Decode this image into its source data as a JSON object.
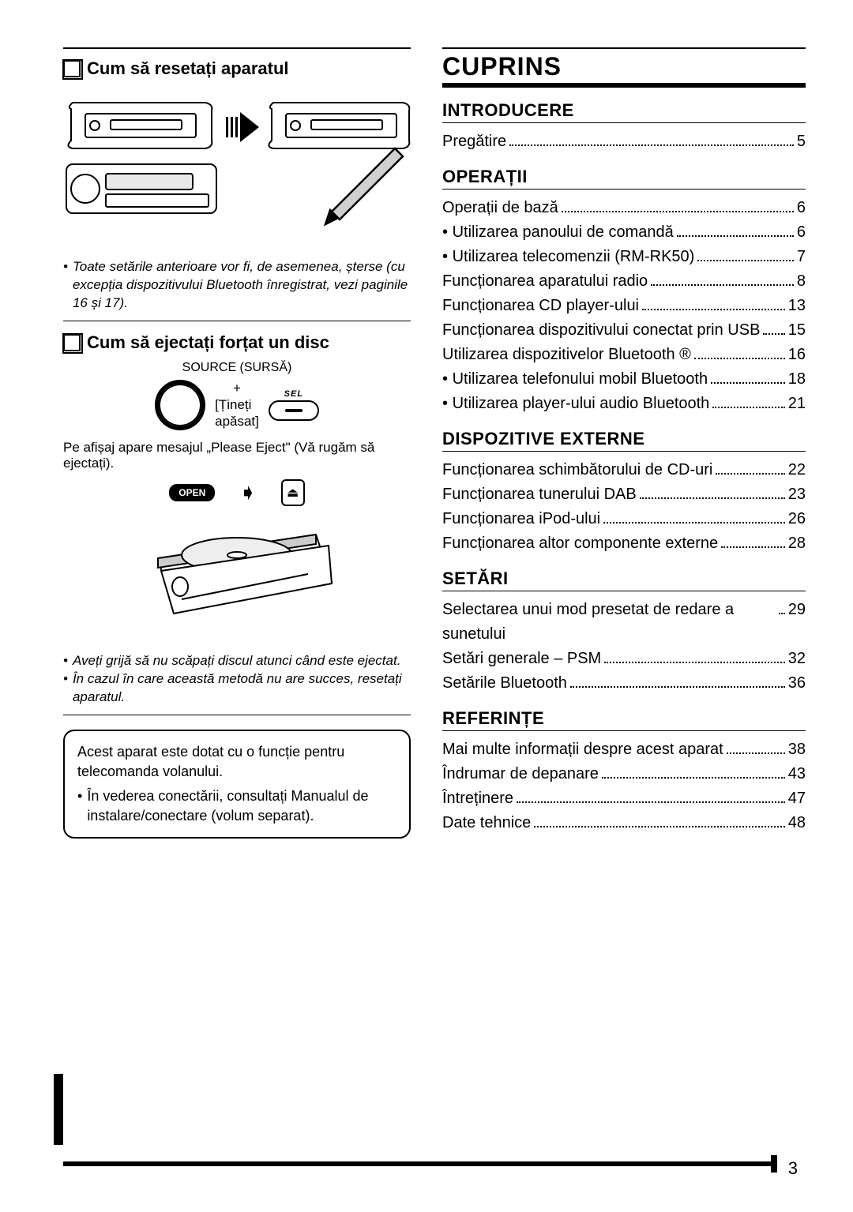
{
  "left": {
    "reset": {
      "heading": "Cum să resetați aparatul",
      "note": "Toate setările anterioare vor fi, de asemenea, șterse (cu excepția dispozitivului Bluetooth înregistrat, vezi paginile 16 și 17)."
    },
    "eject": {
      "heading": "Cum să ejectați forțat un disc",
      "source_label": "SOURCE (SURSĂ)",
      "plus": "+",
      "hold1": "[Țineți",
      "hold2": "apăsat]",
      "sel_label": "SEL",
      "msg": "Pe afișaj apare mesajul „Please Eject\" (Vă rugăm să ejectați).",
      "open": "OPEN",
      "eject_glyph": "⏏",
      "arrow": "➧",
      "notes": [
        "Aveți grijă să nu scăpați discul atunci când este ejectat.",
        "În cazul în care această metodă nu are succes, resetați aparatul."
      ]
    },
    "infobox": {
      "lead": "Acest aparat este dotat cu o funcție pentru telecomanda volanului.",
      "bullet": "În vederea conectării, consultați Manualul de instalare/conectare (volum separat)."
    }
  },
  "toc": {
    "title": "CUPRINS",
    "sections": [
      {
        "name": "INTRODUCERE",
        "items": [
          {
            "label": "Pregătire",
            "page": "5"
          }
        ]
      },
      {
        "name": "OPERAȚII",
        "items": [
          {
            "label": "Operații de bază",
            "page": "6"
          },
          {
            "label": "Utilizarea panoului de comandă",
            "page": "6",
            "sub": true
          },
          {
            "label": "Utilizarea telecomenzii (RM-RK50)",
            "page": "7",
            "sub": true
          },
          {
            "label": "Funcționarea aparatului radio",
            "page": "8"
          },
          {
            "label": "Funcționarea CD player-ului",
            "page": "13"
          },
          {
            "label": "Funcționarea dispozitivului conectat prin USB",
            "page": "15"
          },
          {
            "label": "Utilizarea dispozitivelor Bluetooth ®",
            "page": "16"
          },
          {
            "label": "Utilizarea telefonului mobil Bluetooth",
            "page": "18",
            "sub": true
          },
          {
            "label": "Utilizarea player-ului audio Bluetooth",
            "page": "21",
            "sub": true
          }
        ]
      },
      {
        "name": "DISPOZITIVE EXTERNE",
        "items": [
          {
            "label": "Funcționarea schimbătorului de CD-uri",
            "page": "22"
          },
          {
            "label": "Funcționarea tunerului DAB",
            "page": "23"
          },
          {
            "label": "Funcționarea iPod-ului",
            "page": "26"
          },
          {
            "label": "Funcționarea altor componente externe",
            "page": "28"
          }
        ]
      },
      {
        "name": "SETĂRI",
        "items": [
          {
            "label": "Selectarea unui mod presetat de redare a sunetului",
            "page": "29"
          },
          {
            "label": "Setări generale – PSM",
            "page": "32"
          },
          {
            "label": "Setările Bluetooth",
            "page": "36"
          }
        ]
      },
      {
        "name": "REFERINȚE",
        "items": [
          {
            "label": "Mai multe informații despre acest aparat",
            "page": "38"
          },
          {
            "label": "Îndrumar de depanare",
            "page": "43"
          },
          {
            "label": "Întreținere",
            "page": "47"
          },
          {
            "label": "Date tehnice",
            "page": "48"
          }
        ]
      }
    ]
  },
  "page_number": "3"
}
